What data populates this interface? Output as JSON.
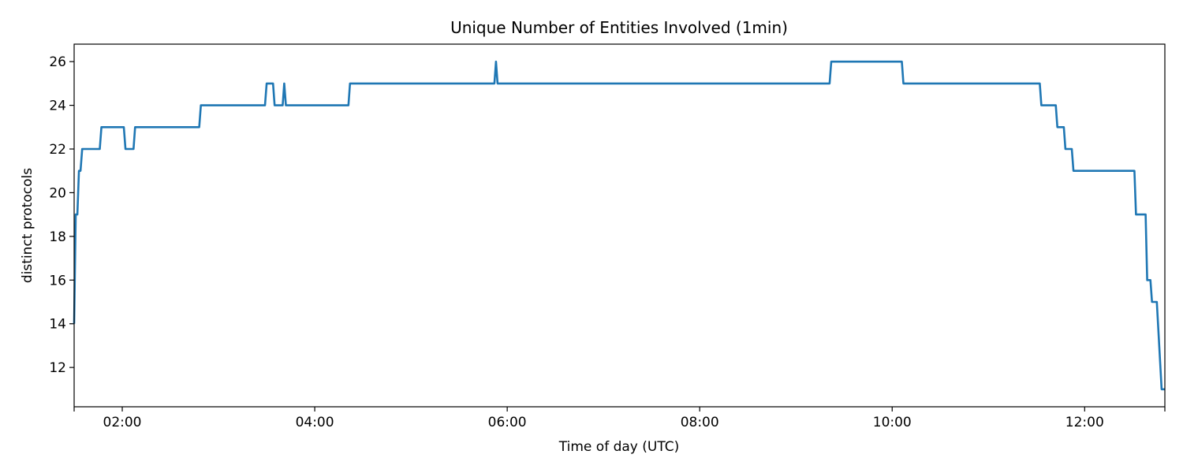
{
  "chart_data": {
    "type": "line",
    "title": "Unique Number of Entities Involved (1min)",
    "xlabel": "Time of day (UTC)",
    "ylabel": "distinct protocols",
    "x_unit": "time of day (HH:MM, UTC)",
    "xlim": [
      "01:30",
      "12:50"
    ],
    "ylim": [
      10.2,
      26.8
    ],
    "x_ticks": [
      "01:30",
      "02:00",
      "04:00",
      "06:00",
      "08:00",
      "10:00",
      "12:00",
      "12:50"
    ],
    "x_tick_labels": [
      "",
      "02:00",
      "04:00",
      "06:00",
      "08:00",
      "10:00",
      "12:00",
      ""
    ],
    "y_ticks": [
      12,
      14,
      16,
      18,
      20,
      22,
      24,
      26
    ],
    "grid": false,
    "legend": "none",
    "color": "#1f77b4",
    "series": [
      {
        "x": [
          "01:30",
          "01:31",
          "01:32",
          "01:33",
          "01:34",
          "01:35",
          "01:36",
          "01:38",
          "01:39",
          "01:46",
          "01:47",
          "01:54",
          "01:55",
          "02:01",
          "02:02",
          "02:07",
          "02:08",
          "02:48",
          "02:49",
          "03:29",
          "03:30",
          "03:34",
          "03:35",
          "03:40",
          "03:41",
          "03:42",
          "03:43",
          "04:21",
          "04:22",
          "05:52",
          "05:53",
          "05:54",
          "09:21",
          "09:22",
          "10:06",
          "10:07",
          "11:32",
          "11:33",
          "11:42",
          "11:43",
          "11:47",
          "11:48",
          "11:52",
          "11:53",
          "12:31",
          "12:32",
          "12:38",
          "12:39",
          "12:40",
          "12:41",
          "12:42",
          "12:45",
          "12:48",
          "12:49",
          "12:50"
        ],
        "y": [
          14,
          19,
          19,
          21,
          21,
          22,
          22,
          22,
          22,
          22,
          23,
          23,
          23,
          23,
          22,
          22,
          23,
          23,
          24,
          24,
          25,
          25,
          24,
          24,
          25,
          24,
          24,
          24,
          25,
          25,
          26,
          25,
          25,
          26,
          26,
          25,
          25,
          24,
          24,
          23,
          23,
          22,
          22,
          21,
          21,
          19,
          19,
          16,
          16,
          16,
          15,
          15,
          11,
          11,
          11
        ]
      }
    ]
  }
}
